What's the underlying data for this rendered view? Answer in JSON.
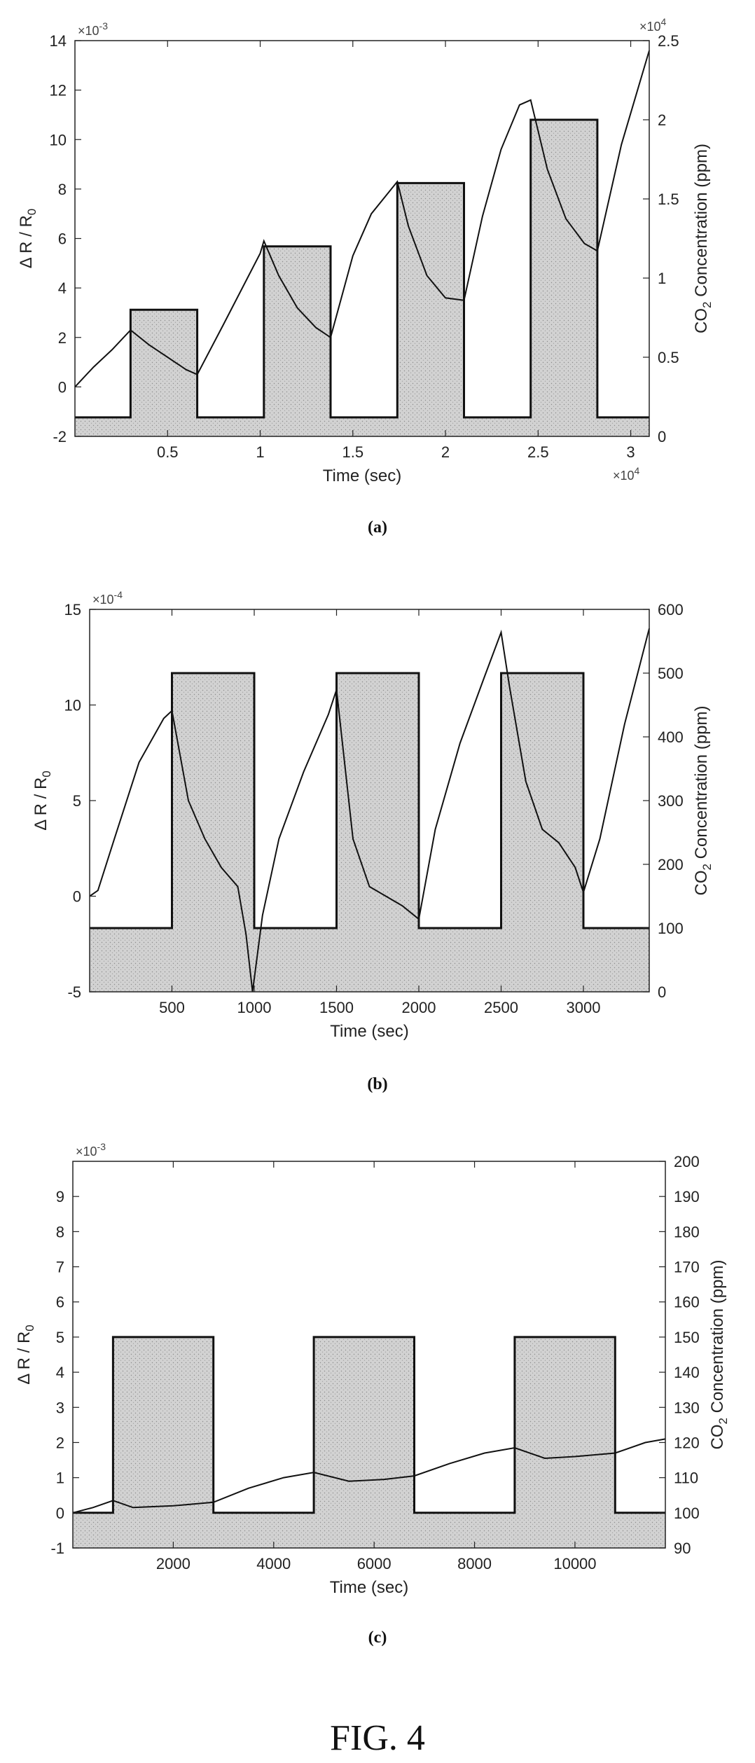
{
  "figure_title": "FIG. 4",
  "colors": {
    "axis": "#222222",
    "fill": "#c8c8c8",
    "line": "#111111"
  },
  "chart_data": [
    {
      "type": "line",
      "caption": "(a)",
      "xlabel": "Time (sec)",
      "ylabel_left": "Δ R / R",
      "ylabel_left_sub": "0",
      "ylabel_right_pre": "CO",
      "ylabel_right_sub": "2",
      "ylabel_right_post": " Concentration (ppm)",
      "x_multiplier": "×10",
      "x_multiplier_exp": "4",
      "yleft_multiplier": "×10",
      "yleft_multiplier_exp": "-3",
      "yright_multiplier": "×10",
      "yright_multiplier_exp": "4",
      "xlim": [
        0,
        3.1
      ],
      "ylim_left": [
        -2,
        14
      ],
      "ylim_right": [
        0,
        2.5
      ],
      "xticks": [
        0.5,
        1,
        1.5,
        2,
        2.5,
        3
      ],
      "xtick_labels": [
        "0.5",
        "1",
        "1.5",
        "2",
        "2.5",
        "3"
      ],
      "yticks_left": [
        -2,
        0,
        2,
        4,
        6,
        8,
        10,
        12,
        14
      ],
      "yticks_left_labels": [
        "-2",
        "0",
        "2",
        "4",
        "6",
        "8",
        "10",
        "12",
        "14"
      ],
      "yticks_right": [
        0,
        0.5,
        1,
        1.5,
        2,
        2.5
      ],
      "yticks_right_labels": [
        "0",
        "0.5",
        "1",
        "1.5",
        "2",
        "2.5"
      ],
      "series": [
        {
          "kind": "step",
          "axis": "right",
          "x": [
            0,
            0.3,
            0.3,
            0.66,
            0.66,
            1.02,
            1.02,
            1.38,
            1.38,
            1.74,
            1.74,
            2.1,
            2.1,
            2.46,
            2.46,
            2.82,
            2.82,
            3.1
          ],
          "values": [
            0.12,
            0.12,
            0.8,
            0.8,
            0.12,
            0.12,
            1.2,
            1.2,
            0.12,
            0.12,
            1.6,
            1.6,
            0.12,
            0.12,
            2.0,
            2.0,
            0.12,
            0.12
          ]
        },
        {
          "kind": "line",
          "axis": "left",
          "x": [
            0,
            0.1,
            0.2,
            0.3,
            0.4,
            0.5,
            0.6,
            0.66,
            0.8,
            1.0,
            1.02,
            1.1,
            1.2,
            1.3,
            1.38,
            1.5,
            1.6,
            1.74,
            1.8,
            1.9,
            2.0,
            2.1,
            2.2,
            2.3,
            2.4,
            2.46,
            2.55,
            2.65,
            2.75,
            2.82,
            2.95,
            3.1
          ],
          "values": [
            0.0,
            0.8,
            1.5,
            2.3,
            1.7,
            1.2,
            0.7,
            0.5,
            2.5,
            5.4,
            5.9,
            4.5,
            3.2,
            2.4,
            2.0,
            5.3,
            7.0,
            8.3,
            6.5,
            4.5,
            3.6,
            3.5,
            6.9,
            9.6,
            11.4,
            11.6,
            8.8,
            6.8,
            5.8,
            5.5,
            9.8,
            13.6
          ]
        }
      ]
    },
    {
      "type": "line",
      "caption": "(b)",
      "xlabel": "Time (sec)",
      "ylabel_left": "Δ R / R",
      "ylabel_left_sub": "0",
      "ylabel_right_pre": "CO",
      "ylabel_right_sub": "2",
      "ylabel_right_post": " Concentration (ppm)",
      "yleft_multiplier": "×10",
      "yleft_multiplier_exp": "-4",
      "xlim": [
        0,
        3400
      ],
      "ylim_left": [
        -5,
        15
      ],
      "ylim_right": [
        0,
        600
      ],
      "xticks": [
        500,
        1000,
        1500,
        2000,
        2500,
        3000
      ],
      "xtick_labels": [
        "500",
        "1000",
        "1500",
        "2000",
        "2500",
        "3000"
      ],
      "yticks_left": [
        -5,
        0,
        5,
        10,
        15
      ],
      "yticks_left_labels": [
        "-5",
        "0",
        "5",
        "10",
        "15"
      ],
      "yticks_right": [
        0,
        100,
        200,
        300,
        400,
        500,
        600
      ],
      "yticks_right_labels": [
        "0",
        "100",
        "200",
        "300",
        "400",
        "500",
        "600"
      ],
      "series": [
        {
          "kind": "step",
          "axis": "right",
          "x": [
            0,
            500,
            500,
            1000,
            1000,
            1500,
            1500,
            2000,
            2000,
            2500,
            2500,
            3000,
            3000,
            3400
          ],
          "values": [
            100,
            100,
            500,
            500,
            100,
            100,
            500,
            500,
            100,
            100,
            500,
            500,
            100,
            100
          ]
        },
        {
          "kind": "line",
          "axis": "left",
          "x": [
            0,
            50,
            150,
            300,
            450,
            500,
            600,
            700,
            800,
            900,
            950,
            990,
            1050,
            1150,
            1300,
            1450,
            1500,
            1600,
            1700,
            1800,
            1900,
            2000,
            2100,
            2250,
            2400,
            2500,
            2550,
            2650,
            2750,
            2850,
            2950,
            3000,
            3100,
            3250,
            3400
          ],
          "values": [
            0,
            0.3,
            3,
            7,
            9.3,
            9.7,
            5,
            3,
            1.5,
            0.5,
            -2,
            -5,
            -1,
            3,
            6.5,
            9.5,
            10.8,
            3,
            0.5,
            0,
            -0.5,
            -1.2,
            3.5,
            8,
            11.5,
            13.8,
            11,
            6,
            3.5,
            2.8,
            1.5,
            0.2,
            3,
            9,
            14
          ]
        }
      ]
    },
    {
      "type": "line",
      "caption": "(c)",
      "xlabel": "Time (sec)",
      "ylabel_left": "Δ R / R",
      "ylabel_left_sub": "0",
      "ylabel_right_pre": "CO",
      "ylabel_right_sub": "2",
      "ylabel_right_post": " Concentration (ppm)",
      "yleft_multiplier": "×10",
      "yleft_multiplier_exp": "-3",
      "xlim": [
        0,
        11800
      ],
      "ylim_left": [
        -1,
        10
      ],
      "ylim_right": [
        90,
        200
      ],
      "xticks": [
        2000,
        4000,
        6000,
        8000,
        10000
      ],
      "xtick_labels": [
        "2000",
        "4000",
        "6000",
        "8000",
        "10000"
      ],
      "yticks_left": [
        -1,
        0,
        1,
        2,
        3,
        4,
        5,
        6,
        7,
        8,
        9
      ],
      "yticks_left_labels": [
        "-1",
        "0",
        "1",
        "2",
        "3",
        "4",
        "5",
        "6",
        "7",
        "8",
        "9"
      ],
      "yticks_right": [
        90,
        100,
        110,
        120,
        130,
        140,
        150,
        160,
        170,
        180,
        190,
        200
      ],
      "yticks_right_labels": [
        "90",
        "100",
        "110",
        "120",
        "130",
        "140",
        "150",
        "160",
        "170",
        "180",
        "190",
        "200"
      ],
      "series": [
        {
          "kind": "step",
          "axis": "right",
          "x": [
            0,
            800,
            800,
            2800,
            2800,
            4800,
            4800,
            6800,
            6800,
            8800,
            8800,
            10800,
            10800,
            11800
          ],
          "values": [
            100,
            100,
            150,
            150,
            100,
            100,
            150,
            150,
            100,
            100,
            150,
            150,
            100,
            100
          ]
        },
        {
          "kind": "line",
          "axis": "left",
          "x": [
            0,
            400,
            800,
            1200,
            2000,
            2800,
            3500,
            4200,
            4800,
            5500,
            6200,
            6800,
            7500,
            8200,
            8800,
            9400,
            10000,
            10800,
            11400,
            11800
          ],
          "values": [
            0,
            0.15,
            0.35,
            0.15,
            0.2,
            0.3,
            0.7,
            1.0,
            1.15,
            0.9,
            0.95,
            1.05,
            1.4,
            1.7,
            1.85,
            1.55,
            1.6,
            1.7,
            2.0,
            2.1
          ]
        }
      ]
    }
  ]
}
